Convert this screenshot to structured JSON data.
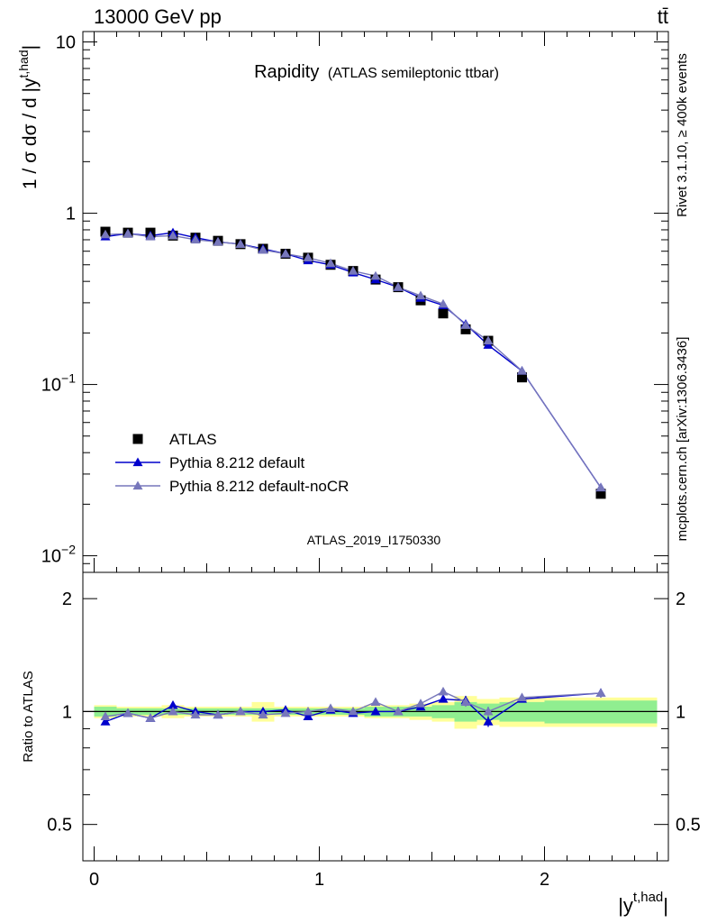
{
  "header": {
    "energy_label": "13000 GeV pp",
    "process_label": "tt̄"
  },
  "side": {
    "rivet_label": "Rivet 3.1.10, ≥ 400k events",
    "source_label": "mcplots.cern.ch [arXiv:1306.3436]"
  },
  "chart_data": {
    "type": "line",
    "title_main": "Rapidity",
    "title_sub": "(ATLAS semileptonic ttbar)",
    "analysis_id": "ATLAS_2019_I1750330",
    "ylabel_main": "1 / σ dσ / d |y",
    "ylabel_sup": "t,had",
    "ylabel_end": "|",
    "ratio_ylabel": "Ratio to ATLAS",
    "xlabel_main": "|y",
    "xlabel_sup": "t,had",
    "xlabel_end": "|",
    "xlim": [
      -0.05,
      2.55
    ],
    "ylim_main": [
      0.008,
      11.5
    ],
    "ylim_ratio": [
      0.4,
      2.35
    ],
    "x_ticks": [
      {
        "v": 0,
        "label": "0"
      },
      {
        "v": 1,
        "label": "1"
      },
      {
        "v": 2,
        "label": "2"
      }
    ],
    "y_ticks_main": [
      {
        "v": 10,
        "base": "10",
        "exp": ""
      },
      {
        "v": 1,
        "base": "1",
        "exp": ""
      },
      {
        "v": 0.1,
        "base": "10",
        "exp": "−1"
      },
      {
        "v": 0.01,
        "base": "10",
        "exp": "−2"
      }
    ],
    "y_ticks_ratio": [
      {
        "v": 2,
        "label": "2"
      },
      {
        "v": 1,
        "label": "1"
      },
      {
        "v": 0.5,
        "label": "0.5"
      }
    ],
    "bins": [
      [
        0.0,
        0.1
      ],
      [
        0.1,
        0.2
      ],
      [
        0.2,
        0.3
      ],
      [
        0.3,
        0.4
      ],
      [
        0.4,
        0.5
      ],
      [
        0.5,
        0.6
      ],
      [
        0.6,
        0.7
      ],
      [
        0.7,
        0.8
      ],
      [
        0.8,
        0.9
      ],
      [
        0.9,
        1.0
      ],
      [
        1.0,
        1.1
      ],
      [
        1.1,
        1.2
      ],
      [
        1.2,
        1.3
      ],
      [
        1.3,
        1.4
      ],
      [
        1.4,
        1.5
      ],
      [
        1.5,
        1.6
      ],
      [
        1.6,
        1.7
      ],
      [
        1.7,
        1.8
      ],
      [
        1.8,
        2.0
      ],
      [
        2.0,
        2.5
      ]
    ],
    "x": [
      0.05,
      0.15,
      0.25,
      0.35,
      0.45,
      0.55,
      0.65,
      0.75,
      0.85,
      0.95,
      1.05,
      1.15,
      1.25,
      1.35,
      1.45,
      1.55,
      1.65,
      1.75,
      1.9,
      2.25
    ],
    "data_band_inner": [
      0.03,
      0.02,
      0.02,
      0.02,
      0.02,
      0.02,
      0.02,
      0.02,
      0.02,
      0.02,
      0.02,
      0.02,
      0.03,
      0.03,
      0.03,
      0.04,
      0.06,
      0.05,
      0.06,
      0.07
    ],
    "data_band_outer": [
      0.04,
      0.03,
      0.03,
      0.04,
      0.03,
      0.03,
      0.03,
      0.06,
      0.03,
      0.03,
      0.03,
      0.03,
      0.04,
      0.04,
      0.05,
      0.06,
      0.1,
      0.08,
      0.09,
      0.09
    ],
    "series": [
      {
        "name": "ATLAS",
        "color": "#000000",
        "marker": "square",
        "values": [
          0.78,
          0.77,
          0.77,
          0.74,
          0.72,
          0.69,
          0.66,
          0.62,
          0.58,
          0.55,
          0.5,
          0.46,
          0.41,
          0.37,
          0.31,
          0.26,
          0.21,
          0.18,
          0.11,
          0.023
        ]
      },
      {
        "name": "Pythia 8.212 default",
        "color": "#0000cc",
        "marker": "triangle",
        "values": [
          0.73,
          0.76,
          0.74,
          0.77,
          0.72,
          0.68,
          0.66,
          0.62,
          0.58,
          0.53,
          0.5,
          0.45,
          0.41,
          0.37,
          0.32,
          0.29,
          0.225,
          0.17,
          0.12,
          0.025
        ],
        "ratio": [
          0.94,
          0.99,
          0.96,
          1.04,
          1.0,
          0.98,
          1.0,
          1.0,
          1.01,
          0.97,
          1.01,
          0.99,
          1.0,
          1.0,
          1.03,
          1.08,
          1.07,
          0.94,
          1.08,
          1.12
        ],
        "ratio_err": [
          0.01,
          0.01,
          0.01,
          0.01,
          0.01,
          0.01,
          0.01,
          0.01,
          0.01,
          0.01,
          0.01,
          0.01,
          0.01,
          0.01,
          0.02,
          0.02,
          0.03,
          0.03,
          0.02,
          0.03
        ]
      },
      {
        "name": "Pythia 8.212 default-noCR",
        "color": "#7777bb",
        "marker": "triangle",
        "values": [
          0.75,
          0.76,
          0.73,
          0.74,
          0.7,
          0.68,
          0.66,
          0.61,
          0.58,
          0.55,
          0.51,
          0.46,
          0.43,
          0.37,
          0.33,
          0.295,
          0.222,
          0.18,
          0.12,
          0.025
        ],
        "ratio": [
          0.97,
          0.99,
          0.96,
          1.0,
          0.98,
          0.98,
          1.0,
          0.98,
          0.99,
          1.0,
          1.02,
          1.0,
          1.06,
          1.0,
          1.05,
          1.13,
          1.06,
          1.0,
          1.09,
          1.12
        ],
        "ratio_err": [
          0.01,
          0.01,
          0.01,
          0.01,
          0.01,
          0.01,
          0.01,
          0.01,
          0.01,
          0.01,
          0.01,
          0.01,
          0.01,
          0.01,
          0.02,
          0.02,
          0.03,
          0.03,
          0.02,
          0.03
        ]
      }
    ],
    "colors": {
      "band_inner": "#90ee90",
      "band_outer": "#ffff99",
      "analysis_id": "#999999",
      "side_text": "#888888"
    }
  }
}
